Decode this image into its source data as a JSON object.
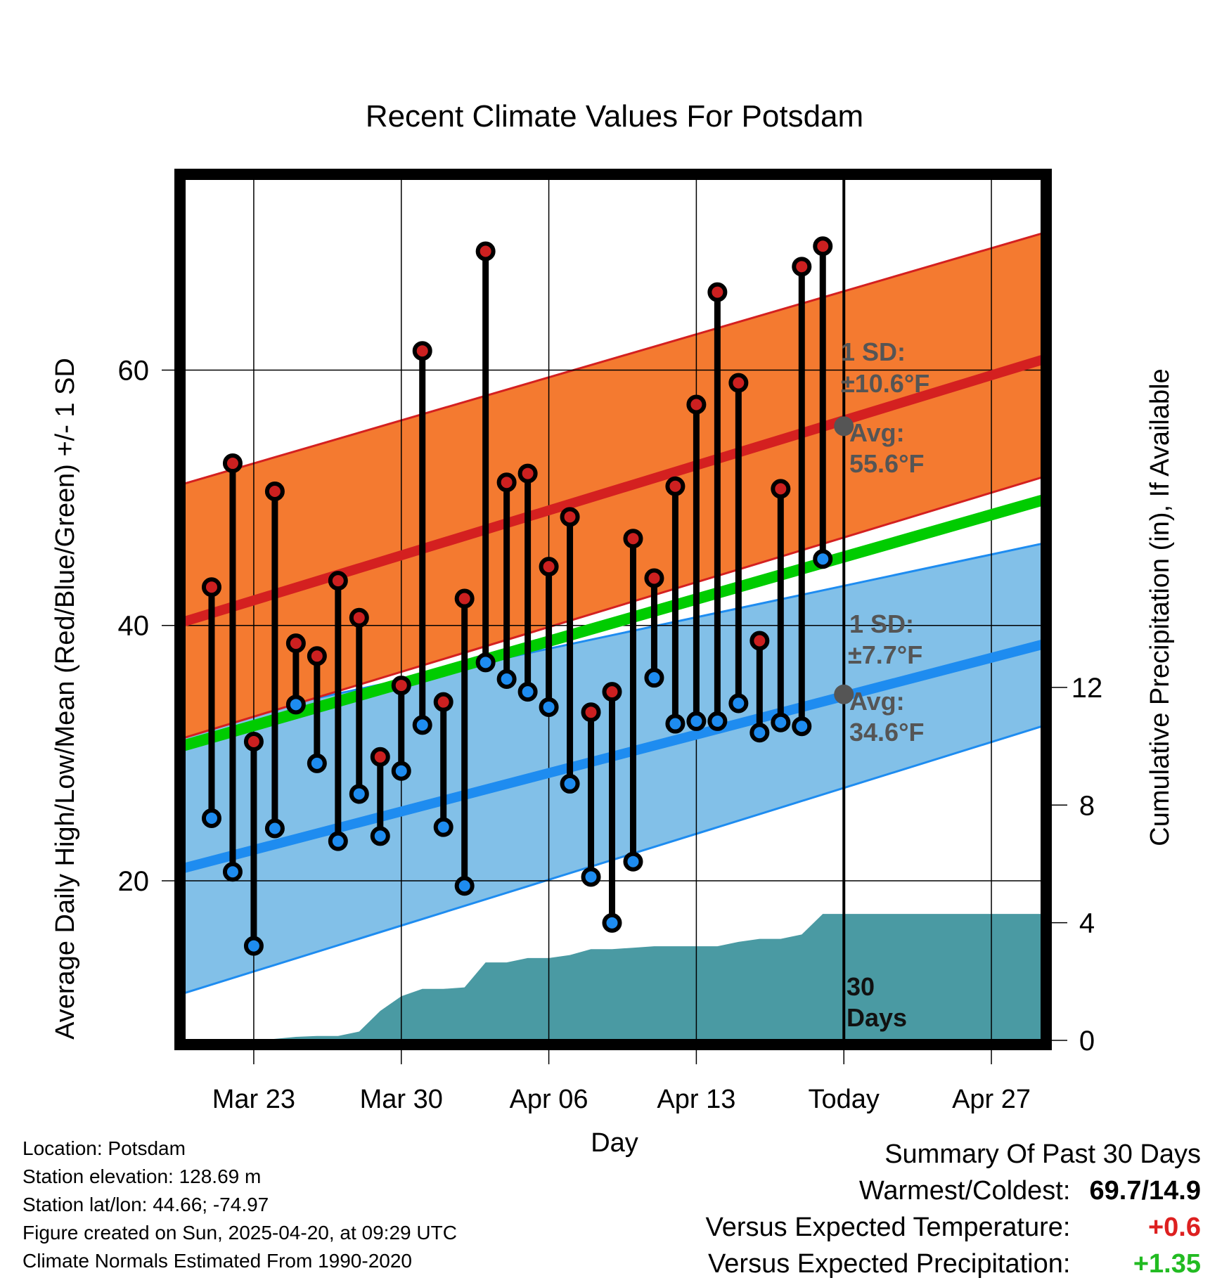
{
  "chart_data": {
    "type": "line",
    "title": "Recent Climate Values For Potsdam",
    "xlabel": "Day",
    "ylabel": "Average Daily High/Low/Mean (Red/Blue/Green) +/- 1 SD",
    "y2label": "Cumulative Precipitation (in), If Available",
    "x_tick_labels": [
      "Mar 23",
      "Mar 30",
      "Apr 06",
      "Apr 13",
      "Today",
      "Apr 27"
    ],
    "y_ticks": [
      20,
      40,
      60
    ],
    "y2_ticks": [
      0,
      4,
      8,
      12
    ],
    "ylim": [
      7.5,
      75
    ],
    "y2lim": [
      0,
      29.3
    ],
    "xlim_days_from_mar20": [
      -0.3,
      40.4
    ],
    "x_tick_days_from_mar20": [
      3,
      10,
      17,
      24,
      31,
      38
    ],
    "grid": true,
    "normal_high": {
      "start": 40.3,
      "end": 60.8,
      "sd_low": [
        31.2,
        51.6
      ],
      "sd_high": [
        51.1,
        70.7
      ],
      "color": "#d42020",
      "band_color": "#f47a30"
    },
    "normal_low": {
      "start": 21.0,
      "end": 38.5,
      "sd_low": [
        11.2,
        32.1
      ],
      "sd_high": [
        32.1,
        46.4
      ],
      "color": "#1e8cf0",
      "band_color": "#82c0e8"
    },
    "normal_mean": {
      "start": 30.6,
      "end": 49.8,
      "color": "#00cc00"
    },
    "daily": [
      {
        "high": 43.0,
        "low": 24.9
      },
      {
        "high": 52.7,
        "low": 20.7
      },
      {
        "high": 30.9,
        "low": 14.9
      },
      {
        "high": 50.5,
        "low": 24.1
      },
      {
        "high": 38.6,
        "low": 33.8
      },
      {
        "high": 37.6,
        "low": 29.2
      },
      {
        "high": 43.5,
        "low": 23.1
      },
      {
        "high": 40.6,
        "low": 26.8
      },
      {
        "high": 29.7,
        "low": 23.5
      },
      {
        "high": 35.3,
        "low": 28.6
      },
      {
        "high": 61.5,
        "low": 32.2
      },
      {
        "high": 34.0,
        "low": 24.2
      },
      {
        "high": 42.1,
        "low": 19.6
      },
      {
        "high": 69.3,
        "low": 37.1
      },
      {
        "high": 51.2,
        "low": 35.8
      },
      {
        "high": 51.9,
        "low": 34.8
      },
      {
        "high": 44.6,
        "low": 33.6
      },
      {
        "high": 48.5,
        "low": 27.6
      },
      {
        "high": 33.2,
        "low": 20.3
      },
      {
        "high": 34.8,
        "low": 16.7
      },
      {
        "high": 46.8,
        "low": 21.5
      },
      {
        "high": 43.7,
        "low": 35.9
      },
      {
        "high": 50.9,
        "low": 32.3
      },
      {
        "high": 57.3,
        "low": 32.5
      },
      {
        "high": 66.1,
        "low": 32.5
      },
      {
        "high": 59.0,
        "low": 33.9
      },
      {
        "high": 38.8,
        "low": 31.6
      },
      {
        "high": 50.7,
        "low": 32.4
      },
      {
        "high": 68.1,
        "low": 32.1
      },
      {
        "high": 69.7,
        "low": 45.2
      }
    ],
    "precip_cumulative": [
      0,
      0,
      0,
      0,
      0.05,
      0.12,
      0.15,
      0.15,
      0.3,
      1.0,
      1.5,
      1.75,
      1.75,
      1.8,
      2.65,
      2.65,
      2.8,
      2.8,
      2.9,
      3.1,
      3.1,
      3.15,
      3.2,
      3.2,
      3.2,
      3.2,
      3.35,
      3.45,
      3.45,
      3.6,
      4.3
    ],
    "precip_color": "#4a9aa3",
    "annotations": {
      "high_sd": "1 SD:",
      "high_sd_val": "±10.6°F",
      "high_avg": "Avg:",
      "high_avg_val": "55.6°F",
      "high_avg_value": 55.6,
      "low_sd": "1 SD:",
      "low_sd_val": "±7.7°F",
      "low_avg": "Avg:",
      "low_avg_val": "34.6°F",
      "low_avg_value": 34.6,
      "days_line1": "30",
      "days_line2": "Days"
    }
  },
  "footer": {
    "location": "Location: Potsdam",
    "elevation": "Station elevation: 128.69 m",
    "latlon": "Station lat/lon: 44.66; -74.97",
    "created": "Figure created on Sun, 2025-04-20, at 09:29 UTC",
    "normals": "Climate Normals Estimated From 1990-2020"
  },
  "summary": {
    "title": "Summary Of Past 30 Days",
    "warmest_label": "Warmest/Coldest:",
    "warmest_value": "69.7/14.9",
    "temp_label": "Versus Expected Temperature:",
    "temp_value": "+0.6",
    "temp_color": "#dd2020",
    "precip_label": "Versus Expected Precipitation:",
    "precip_value": "+1.35",
    "precip_color": "#22bb22"
  }
}
